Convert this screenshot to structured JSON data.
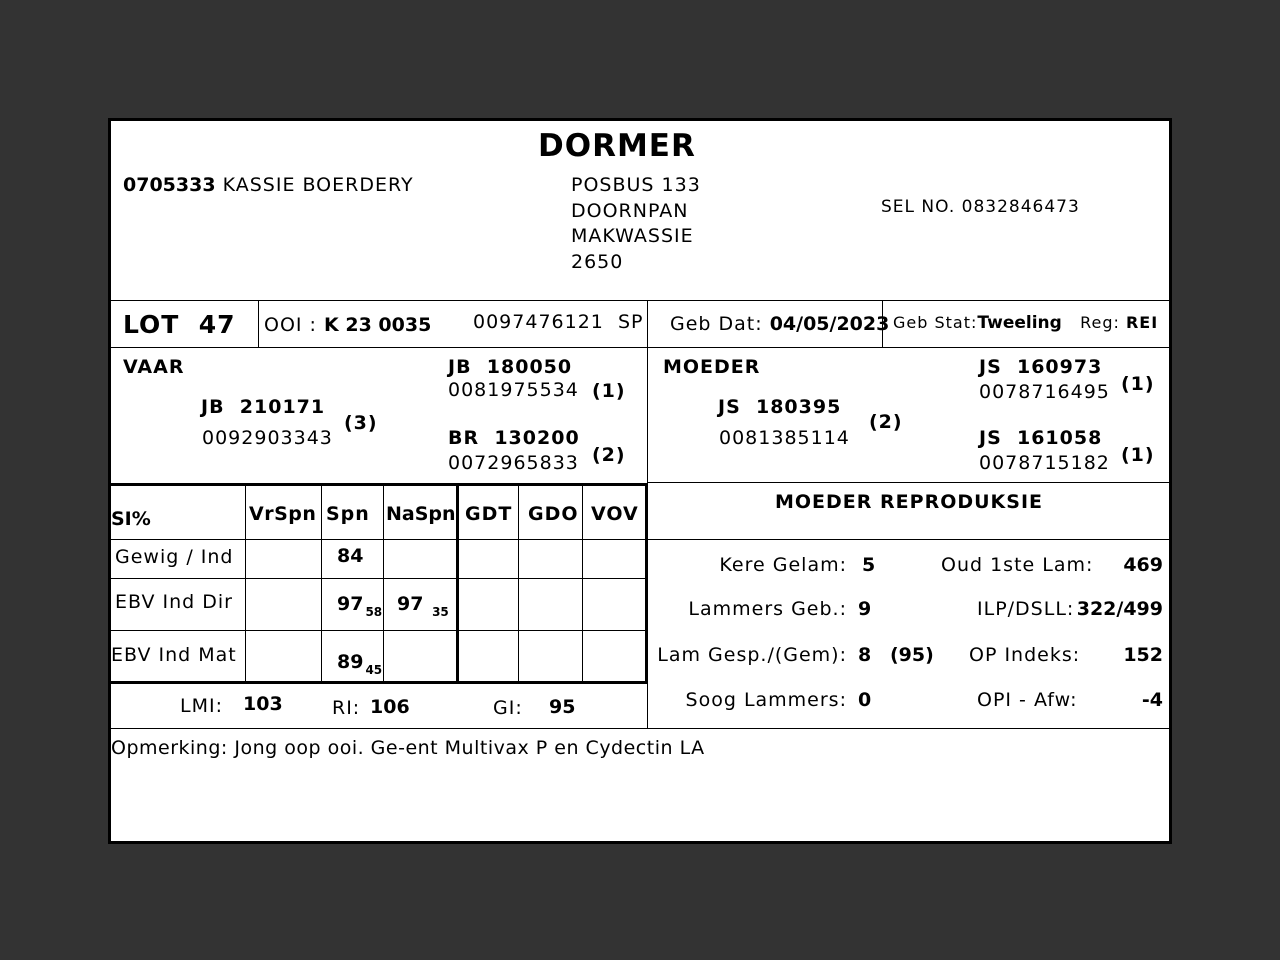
{
  "breed": "DORMER",
  "owner": {
    "code": "0705333",
    "name": "KASSIE BOERDERY",
    "address": [
      "POSBUS 133",
      "DOORNPAN",
      "MAKWASSIE",
      "2650"
    ],
    "phone": "SEL NO. 0832846473"
  },
  "lot": {
    "label": "LOT",
    "number": "47"
  },
  "animal": {
    "type_label": "OOI :",
    "id": "K 23 0035",
    "reg_no": "0097476121",
    "suffix": "SP",
    "birth_label": "Geb Dat:",
    "birth_date": "04/05/2023",
    "birth_status_label": "Geb Stat:",
    "birth_status": "Tweeling",
    "reg_label": "Reg:",
    "reg": "REI"
  },
  "sire": {
    "label": "VAAR",
    "id": "JB  210171",
    "no": "0092903343",
    "grade": "(3)",
    "sire": {
      "id": "JB  180050",
      "no": "0081975534",
      "grade": "(1)"
    },
    "dam": {
      "id": "BR  130200",
      "no": "0072965833",
      "grade": "(2)"
    }
  },
  "dam": {
    "label": "MOEDER",
    "id": "JS  180395",
    "no": "0081385114",
    "grade": "(2)",
    "sire": {
      "id": "JS  160973",
      "no": "0078716495",
      "grade": "(1)"
    },
    "dam": {
      "id": "JS  161058",
      "no": "0078715182",
      "grade": "(1)"
    }
  },
  "table": {
    "headers": [
      "SI%",
      "VrSpn",
      "Spn",
      "NaSpn",
      "GDT",
      "GDO",
      "VOV"
    ],
    "rows": [
      {
        "label": "Gewig / Ind",
        "spn": "84",
        "spn_sub": "",
        "naspn": "",
        "naspn_sub": ""
      },
      {
        "label": "EBV Ind Dir",
        "spn": "97",
        "spn_sub": "58",
        "naspn": "97",
        "naspn_sub": "35"
      },
      {
        "label": "EBV Ind Mat",
        "spn": "89",
        "spn_sub": "45",
        "naspn": "",
        "naspn_sub": ""
      }
    ]
  },
  "indexes": {
    "lmi_label": "LMI:",
    "lmi": "103",
    "ri_label": "RI:",
    "ri": "106",
    "gi_label": "GI:",
    "gi": "95"
  },
  "repro": {
    "title": "MOEDER REPRODUKSIE",
    "left": [
      {
        "label": "Kere Gelam:",
        "value": "5"
      },
      {
        "label": "Lammers Geb.:",
        "value": "9"
      },
      {
        "label": "Lam Gesp./(Gem):",
        "value": "8",
        "extra": "(95)"
      },
      {
        "label": "Soog Lammers:",
        "value": "0"
      }
    ],
    "right": [
      {
        "label": "Oud 1ste Lam:",
        "value": "469"
      },
      {
        "label": "ILP/DSLL:",
        "value": "322/499"
      },
      {
        "label": "OP Indeks:",
        "value": "152"
      },
      {
        "label": "OPI - Afw:",
        "value": "-4"
      }
    ]
  },
  "remark": "Opmerking: Jong oop ooi. Ge-ent Multivax P en Cydectin LA"
}
